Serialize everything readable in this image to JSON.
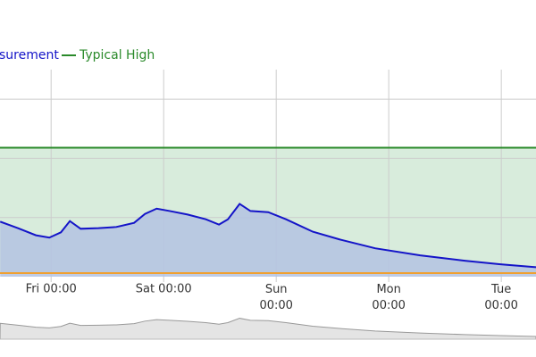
{
  "chart_data": {
    "type": "line",
    "xlim": [
      -10.9,
      103.4
    ],
    "xticks": [
      {
        "value": 0,
        "label": "Fri 00:00"
      },
      {
        "value": 24,
        "label": "Sat 00:00"
      },
      {
        "value": 48,
        "label": "Sun\n00:00"
      },
      {
        "value": 72,
        "label": "Mon\n00:00"
      },
      {
        "value": 96,
        "label": "Tue\n00:00"
      }
    ],
    "ylim": [
      0,
      3.5
    ],
    "yticks": [
      1,
      2,
      3
    ],
    "grid": true,
    "series": [
      {
        "name": "surement",
        "color": "#1414c8",
        "fill": "#b4c3e2",
        "x": [
          -10.86,
          -7.05,
          -3.24,
          -0.38,
          2.1,
          4.0,
          6.29,
          10.1,
          13.9,
          17.7,
          20.0,
          22.5,
          25.3,
          29.1,
          33.0,
          35.8,
          37.7,
          40.2,
          42.5,
          46.3,
          50.1,
          55.8,
          61.5,
          69.1,
          78.7,
          88.2,
          95.8,
          103.4
        ],
        "values": [
          0.93,
          0.82,
          0.7,
          0.66,
          0.75,
          0.94,
          0.81,
          0.82,
          0.84,
          0.91,
          1.06,
          1.15,
          1.11,
          1.05,
          0.97,
          0.88,
          0.97,
          1.23,
          1.11,
          1.09,
          0.97,
          0.76,
          0.63,
          0.48,
          0.36,
          0.27,
          0.21,
          0.16
        ]
      },
      {
        "name": "Typical High",
        "color": "#2a8a2a",
        "x": [
          -10.9,
          103.4
        ],
        "values": [
          2.18,
          2.18
        ]
      },
      {
        "color": "#f0a030",
        "x": [
          -10.9,
          103.4
        ],
        "values": [
          0.06,
          0.06
        ]
      }
    ]
  }
}
